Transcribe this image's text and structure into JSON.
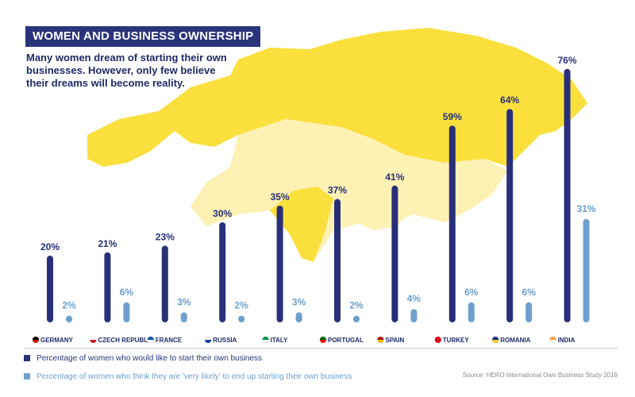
{
  "header": {
    "title": "WOMEN AND BUSINESS OWNERSHIP",
    "subtitle_lines": [
      "Many women dream of starting their own",
      "businesses. However, only few believe",
      "their dreams will become reality."
    ]
  },
  "legend": {
    "series1": "Percentage of women who would like to start their own business",
    "series2": "Percentage of women who think they are 'very likely' to end up starting their own business"
  },
  "source": "Source: HERO  International Own Business Study 2019",
  "colors": {
    "dark": "#28307a",
    "light": "#6e9fcd",
    "map_bright": "#fbdf3d",
    "map_pale": "#fdf1b4"
  },
  "chart_data": {
    "type": "bar",
    "categories": [
      "GERMANY",
      "CZECH REPUBLIC",
      "FRANCE",
      "RUSSIA",
      "ITALY",
      "PORTUGAL",
      "SPAIN",
      "TURKEY",
      "ROMANIA",
      "INDIA"
    ],
    "series": [
      {
        "name": "Percentage of women who would like to start their own business",
        "values": [
          20,
          21,
          23,
          30,
          35,
          37,
          41,
          59,
          64,
          76
        ],
        "labels": [
          "20%",
          "21%",
          "23%",
          "30%",
          "35%",
          "37%",
          "41%",
          "59%",
          "64%",
          "76%"
        ]
      },
      {
        "name": "Percentage of women who think they are 'very likely' to end up starting their own business",
        "values": [
          2,
          6,
          3,
          2,
          3,
          2,
          4,
          6,
          6,
          31
        ],
        "labels": [
          "2%",
          "6%",
          "3%",
          "2%",
          "3%",
          "2%",
          "4%",
          "6%",
          "6%",
          "31%"
        ]
      }
    ],
    "ylim": [
      0,
      80
    ],
    "title": "WOMEN AND BUSINESS OWNERSHIP"
  }
}
